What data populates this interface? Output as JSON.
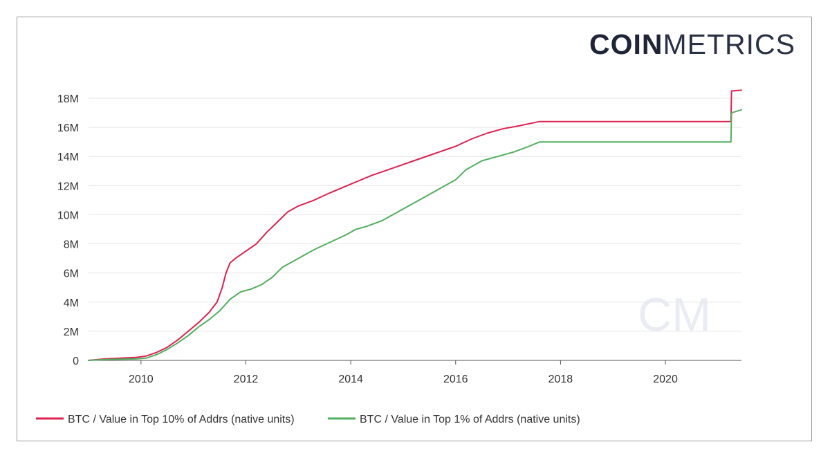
{
  "brand": {
    "bold": "COIN",
    "light": "METRICS",
    "watermark": "CM"
  },
  "colors": {
    "top10": "#dc2150",
    "top1": "#52ae5d",
    "grid": "#e6e6e6",
    "axis": "#555555"
  },
  "chart_data": {
    "type": "line",
    "title": "",
    "xlabel": "",
    "ylabel": "",
    "xlim": [
      2009.0,
      2021.45
    ],
    "ylim": [
      0,
      18000000
    ],
    "x_ticks": [
      2010,
      2012,
      2014,
      2016,
      2018,
      2020
    ],
    "x_tick_labels": [
      "2010",
      "2012",
      "2014",
      "2016",
      "2018",
      "2020"
    ],
    "y_ticks": [
      0,
      2000000,
      4000000,
      6000000,
      8000000,
      10000000,
      12000000,
      14000000,
      16000000,
      18000000
    ],
    "y_tick_labels": [
      "0",
      "2M",
      "4M",
      "6M",
      "8M",
      "10M",
      "12M",
      "14M",
      "16M",
      "18M"
    ],
    "grid": true,
    "legend_position": "bottom-left",
    "series": [
      {
        "name": "BTC / Value in Top 10% of Addrs (native units)",
        "color": "#dc2150",
        "x": [
          2009.0,
          2009.3,
          2009.6,
          2009.9,
          2010.1,
          2010.3,
          2010.5,
          2010.7,
          2010.9,
          2011.1,
          2011.3,
          2011.45,
          2011.55,
          2011.62,
          2011.7,
          2011.8,
          2012.0,
          2012.2,
          2012.4,
          2012.6,
          2012.8,
          2013.0,
          2013.3,
          2013.6,
          2014.0,
          2014.4,
          2014.8,
          2015.2,
          2015.6,
          2016.0,
          2016.3,
          2016.6,
          2016.9,
          2017.2,
          2017.6,
          2018.0,
          2019.0,
          2020.0,
          2021.0,
          2021.25,
          2021.26,
          2021.45
        ],
        "values": [
          0,
          100000,
          150000,
          200000,
          300000,
          550000,
          900000,
          1400000,
          2000000,
          2600000,
          3300000,
          4000000,
          5000000,
          6000000,
          6700000,
          7000000,
          7500000,
          8000000,
          8800000,
          9500000,
          10200000,
          10600000,
          11000000,
          11500000,
          12100000,
          12700000,
          13200000,
          13700000,
          14200000,
          14700000,
          15200000,
          15600000,
          15900000,
          16100000,
          16400000,
          16400000,
          16400000,
          16400000,
          16400000,
          16400000,
          18500000,
          18550000
        ]
      },
      {
        "name": "BTC / Value in Top 1% of Addrs (native units)",
        "color": "#52ae5d",
        "x": [
          2009.0,
          2009.3,
          2009.6,
          2009.9,
          2010.1,
          2010.3,
          2010.5,
          2010.7,
          2010.9,
          2011.1,
          2011.3,
          2011.5,
          2011.7,
          2011.9,
          2012.1,
          2012.3,
          2012.5,
          2012.7,
          2012.8,
          2013.0,
          2013.3,
          2013.6,
          2013.9,
          2014.1,
          2014.3,
          2014.6,
          2014.9,
          2015.2,
          2015.5,
          2015.8,
          2016.0,
          2016.2,
          2016.5,
          2016.8,
          2017.1,
          2017.4,
          2017.6,
          2018.0,
          2019.0,
          2020.0,
          2021.0,
          2021.25,
          2021.26,
          2021.45
        ],
        "values": [
          0,
          50000,
          80000,
          100000,
          150000,
          400000,
          750000,
          1200000,
          1700000,
          2300000,
          2800000,
          3400000,
          4200000,
          4700000,
          4900000,
          5200000,
          5700000,
          6400000,
          6600000,
          7000000,
          7600000,
          8100000,
          8600000,
          9000000,
          9200000,
          9600000,
          10200000,
          10800000,
          11400000,
          12000000,
          12400000,
          13100000,
          13700000,
          14000000,
          14300000,
          14700000,
          15000000,
          15000000,
          15000000,
          15000000,
          15000000,
          15000000,
          17000000,
          17200000
        ]
      }
    ]
  }
}
